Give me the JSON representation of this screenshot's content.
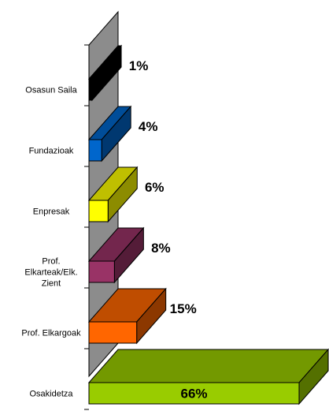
{
  "chart_data": {
    "type": "bar",
    "orientation": "horizontal",
    "three_d": true,
    "categories": [
      "Osasun Saila",
      "Fundazioak",
      "Enpresak",
      "Prof. Elkarteak/Elk. Zient",
      "Prof. Elkargoak",
      "Osakidetza"
    ],
    "category_label_lines": [
      [
        "Osasun Saila"
      ],
      [
        "Fundazioak"
      ],
      [
        "Enpresak"
      ],
      [
        "Prof.",
        "Elkarteak/Elk.",
        "Zient"
      ],
      [
        "Prof. Elkargoak"
      ],
      [
        "Osakidetza"
      ]
    ],
    "values": [
      1,
      4,
      6,
      8,
      15,
      66
    ],
    "value_labels": [
      "1%",
      "4%",
      "6%",
      "8%",
      "15%",
      "66%"
    ],
    "unit": "%",
    "colors": [
      "#000000",
      "#0066CC",
      "#FFFF00",
      "#993366",
      "#FF6600",
      "#99CC00"
    ],
    "xlim": [
      0,
      66
    ],
    "grid": false,
    "legend": "none",
    "title": "",
    "xlabel": "",
    "ylabel": ""
  }
}
